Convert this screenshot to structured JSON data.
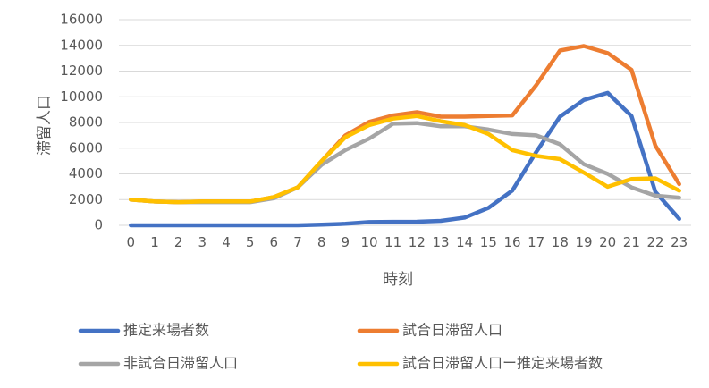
{
  "chart_data": {
    "type": "line",
    "title": "",
    "xlabel": "時刻",
    "ylabel": "滞留人口",
    "ylim": [
      0,
      16000
    ],
    "yticks": [
      0,
      2000,
      4000,
      6000,
      8000,
      10000,
      12000,
      14000,
      16000
    ],
    "grid": true,
    "legend_position": "bottom",
    "x": [
      "0",
      "1",
      "2",
      "3",
      "4",
      "5",
      "6",
      "7",
      "8",
      "9",
      "10",
      "11",
      "12",
      "13",
      "14",
      "15",
      "16",
      "17",
      "18",
      "19",
      "20",
      "21",
      "22",
      "23"
    ],
    "series": [
      {
        "name": "推定来場者数",
        "color": "#4472C4",
        "values": [
          0,
          0,
          0,
          0,
          0,
          0,
          0,
          0,
          50,
          120,
          250,
          270,
          280,
          350,
          600,
          1350,
          2700,
          5700,
          8450,
          9750,
          10300,
          8500,
          2600,
          500
        ]
      },
      {
        "name": "試合日滞留人口",
        "color": "#ED7D31",
        "values": [
          2000,
          1850,
          1800,
          1850,
          1850,
          1850,
          2200,
          2950,
          5000,
          7000,
          8050,
          8550,
          8800,
          8450,
          8450,
          8500,
          8550,
          10900,
          13600,
          13950,
          13400,
          12100,
          6200,
          3200
        ]
      },
      {
        "name": "非試合日滞留人口",
        "color": "#A5A5A5",
        "values": [
          2000,
          1850,
          1800,
          1800,
          1800,
          1800,
          2100,
          2950,
          4700,
          5850,
          6750,
          7900,
          7950,
          7700,
          7700,
          7450,
          7100,
          7000,
          6300,
          4750,
          4000,
          2950,
          2300,
          2150
        ]
      },
      {
        "name": "試合日滞留人口ー推定来場者数",
        "color": "#FFC000",
        "values": [
          2000,
          1850,
          1800,
          1850,
          1850,
          1850,
          2200,
          2950,
          5000,
          6850,
          7800,
          8300,
          8500,
          8100,
          7800,
          7100,
          5850,
          5400,
          5150,
          4100,
          3000,
          3600,
          3650,
          2700
        ]
      }
    ]
  }
}
